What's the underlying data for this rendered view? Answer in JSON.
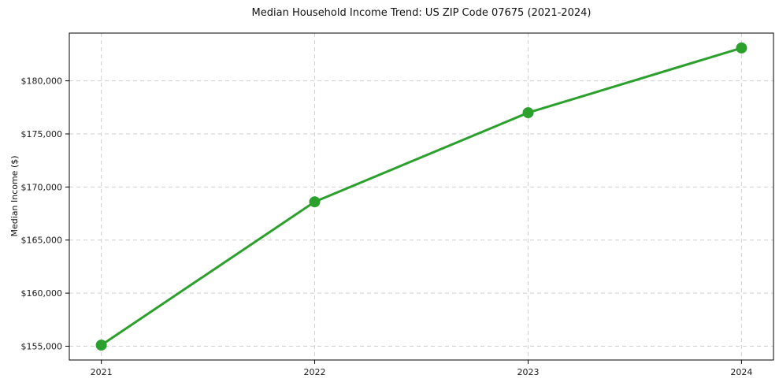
{
  "chart_data": {
    "type": "line",
    "title": "Median Household Income Trend: US ZIP Code 07675 (2021-2024)",
    "xlabel": "",
    "ylabel": "Median Income ($)",
    "x": [
      2021,
      2022,
      2023,
      2024
    ],
    "series": [
      {
        "name": "Median Household Income",
        "values": [
          155100,
          168600,
          177000,
          183100
        ]
      }
    ],
    "xticks": [
      2021,
      2022,
      2023,
      2024
    ],
    "xtick_labels": [
      "2021",
      "2022",
      "2023",
      "2024"
    ],
    "yticks": [
      155000,
      160000,
      165000,
      170000,
      175000,
      180000
    ],
    "ytick_labels": [
      "$155,000",
      "$160,000",
      "$165,000",
      "$170,000",
      "$175,000",
      "$180,000"
    ],
    "xlim": [
      2020.85,
      2024.15
    ],
    "ylim": [
      153700,
      184500
    ],
    "grid": true,
    "legend": false,
    "line_color": "#2ca02c",
    "grid_color": "#cfcfcf",
    "spine_color": "#000000",
    "text_color": "#1a1a1a",
    "background_color": "#ffffff",
    "marker": "circle",
    "marker_radius": 7,
    "line_width": 3
  }
}
